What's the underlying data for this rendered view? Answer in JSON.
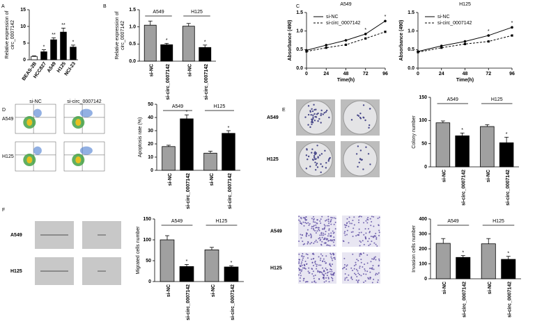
{
  "panel_labels": [
    "A",
    "B",
    "C",
    "D",
    "E",
    "F"
  ],
  "image_grids": [
    {
      "columns": [
        "si-NC",
        "si-circ_0007142"
      ],
      "rows": [
        "A549",
        "H125"
      ]
    },
    {
      "rows": [
        "A549",
        "H125"
      ]
    },
    {
      "rows": [
        "A549",
        "H125"
      ]
    },
    {
      "rows": [
        "A549",
        "H125"
      ]
    }
  ],
  "chart_data": [
    {
      "type": "bar",
      "ylabel": [
        "Relative expression of",
        "circ_0007142"
      ],
      "categories": [
        "BEAS-2B",
        "HCC827",
        "A549",
        "H125",
        "NCI-23"
      ],
      "values": [
        1,
        2.4,
        6,
        8.3,
        3.8
      ],
      "errors": [
        0.2,
        0.6,
        0.6,
        1.2,
        0.6
      ],
      "colors": [
        "#ffffff",
        "#000000",
        "#000000",
        "#000000",
        "#000000"
      ],
      "significance": [
        null,
        "*",
        "**",
        "**",
        "*"
      ],
      "ylim": [
        0,
        15
      ],
      "yticks": [
        0,
        5,
        10,
        15
      ]
    },
    {
      "type": "bar",
      "ylabel": [
        "Relative expression of",
        "circ_0007142"
      ],
      "categories": [
        "si-NC",
        "si-circ_0007142",
        "si-NC",
        "si-circ_0007142"
      ],
      "groups": [
        "A549",
        "H125"
      ],
      "values": [
        1.05,
        0.48,
        1.02,
        0.4
      ],
      "errors": [
        0.12,
        0.04,
        0.08,
        0.07
      ],
      "colors": [
        "#a0a0a0",
        "#000000",
        "#a0a0a0",
        "#000000"
      ],
      "significance": [
        null,
        "*",
        null,
        "*"
      ],
      "ylim": [
        0,
        1.5
      ],
      "yticks": [
        {
          "value": 0,
          "label": "0.0"
        },
        0.5,
        {
          "value": 1,
          "label": "1.0"
        },
        1.5
      ]
    },
    {
      "type": "line",
      "title": "A549",
      "xlabel": "Time(h)",
      "ylabel": "Absorbance (490)",
      "x": [
        0,
        24,
        48,
        72,
        96
      ],
      "series": [
        {
          "name": "si-NC",
          "color": "#000000",
          "values": [
            0.48,
            0.62,
            0.75,
            0.92,
            1.27
          ]
        },
        {
          "name": "si-circ_0007142",
          "color": "#000000",
          "values": [
            0.45,
            0.55,
            0.63,
            0.8,
            0.98
          ]
        }
      ],
      "significance": [
        null,
        null,
        null,
        "*",
        "*"
      ],
      "legend": "upper left",
      "xlim": [
        0,
        96
      ],
      "xticks": [
        0,
        24,
        48,
        72,
        96
      ],
      "ylim": [
        0,
        1.5
      ],
      "yticks": [
        {
          "value": 0,
          "label": "0.0"
        },
        0.5,
        {
          "value": 1,
          "label": "1.0"
        },
        1.5
      ]
    },
    {
      "type": "line",
      "title": "H125",
      "xlabel": "Time(h)",
      "ylabel": "Absorbance (490)",
      "x": [
        0,
        24,
        48,
        72,
        96
      ],
      "series": [
        {
          "name": "si-NC",
          "color": "#000000",
          "values": [
            0.45,
            0.6,
            0.72,
            0.88,
            1.1
          ]
        },
        {
          "name": "si-circ_0007142",
          "color": "#000000",
          "values": [
            0.43,
            0.55,
            0.65,
            0.72,
            0.88
          ]
        }
      ],
      "significance": [
        null,
        null,
        null,
        "*",
        "*"
      ],
      "legend": "upper left",
      "xlim": [
        0,
        96
      ],
      "xticks": [
        0,
        24,
        48,
        72,
        96
      ],
      "ylim": [
        0,
        1.5
      ],
      "yticks": [
        {
          "value": 0,
          "label": "0.0"
        },
        0.5,
        {
          "value": 1,
          "label": "1.0"
        },
        1.5
      ]
    },
    {
      "type": "bar",
      "ylabel": [
        "Apoptosis rate (%)"
      ],
      "categories": [
        "si-NC",
        "si-circ_0007142",
        "si-NC",
        "si-circ_0007142"
      ],
      "groups": [
        "A549",
        "H125"
      ],
      "values": [
        18,
        39,
        13,
        28
      ],
      "errors": [
        1,
        3,
        1.5,
        2
      ],
      "colors": [
        "#a0a0a0",
        "#000000",
        "#a0a0a0",
        "#000000"
      ],
      "significance": [
        null,
        "*",
        null,
        "*"
      ],
      "ylim": [
        0,
        50
      ],
      "yticks": [
        0,
        10,
        20,
        30,
        40,
        50
      ]
    },
    {
      "type": "bar",
      "ylabel": [
        "Colony number"
      ],
      "categories": [
        "si-NC",
        "si-circ_0007142",
        "si-NC",
        "si-circ_0007142"
      ],
      "groups": [
        "A549",
        "H125"
      ],
      "values": [
        95,
        67,
        87,
        52
      ],
      "errors": [
        4,
        6,
        4,
        12
      ],
      "colors": [
        "#a0a0a0",
        "#000000",
        "#a0a0a0",
        "#000000"
      ],
      "significance": [
        null,
        "*",
        null,
        "*"
      ],
      "ylim": [
        0,
        150
      ],
      "yticks": [
        0,
        50,
        100,
        150
      ]
    },
    {
      "type": "bar",
      "ylabel": [
        "Migrated cells number"
      ],
      "categories": [
        "si-NC",
        "si-circ_0007142",
        "si-NC",
        "si-circ_0007142"
      ],
      "groups": [
        "A549",
        "H125"
      ],
      "values": [
        100,
        36,
        76,
        35
      ],
      "errors": [
        10,
        5,
        6,
        3
      ],
      "colors": [
        "#a0a0a0",
        "#000000",
        "#a0a0a0",
        "#000000"
      ],
      "significance": [
        null,
        "*",
        null,
        "*"
      ],
      "ylim": [
        0,
        150
      ],
      "yticks": [
        0,
        50,
        100,
        150
      ]
    },
    {
      "type": "bar",
      "ylabel": [
        "Invasion cells number"
      ],
      "categories": [
        "si-NC",
        "si-circ_0007142",
        "si-NC",
        "si-circ_0007142"
      ],
      "groups": [
        "A549",
        "H125"
      ],
      "values": [
        237,
        143,
        234,
        130
      ],
      "errors": [
        32,
        12,
        35,
        20
      ],
      "colors": [
        "#a0a0a0",
        "#000000",
        "#a0a0a0",
        "#000000"
      ],
      "significance": [
        null,
        "*",
        null,
        "*"
      ],
      "ylim": [
        0,
        400
      ],
      "yticks": [
        0,
        100,
        200,
        300,
        400
      ]
    }
  ]
}
